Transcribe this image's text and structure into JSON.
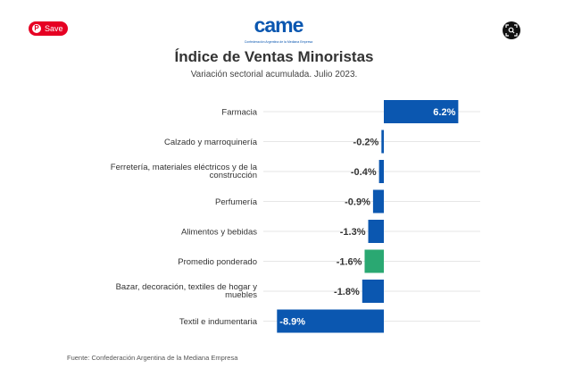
{
  "overlay": {
    "save_label": "Save",
    "pin_glyph": "P"
  },
  "logo": {
    "text": "came",
    "subtitle": "Confederación Argentina de la Mediana Empresa"
  },
  "header": {
    "title": "Índice de Ventas Minoristas",
    "subtitle": "Variación sectorial acumulada. Julio 2023."
  },
  "footer": {
    "source": "Fuente: Confederación Argentina de la Mediana Empresa"
  },
  "colors": {
    "bar": "#0b57b0",
    "highlight": "#2aa872",
    "gridline": "#e6e6e6",
    "label_dark": "#333333",
    "label_light": "#ffffff"
  },
  "chart_data": {
    "type": "bar",
    "orientation": "horizontal",
    "title": "Índice de Ventas Minoristas",
    "subtitle": "Variación sectorial acumulada. Julio 2023.",
    "xlabel": "",
    "ylabel": "",
    "unit": "%",
    "xlim": [
      -8.9,
      6.2
    ],
    "grid": true,
    "categories": [
      "Farmacia",
      "Calzado y marroquinería",
      "Ferretería, materiales eléctricos y de la construcción",
      "Perfumería",
      "Alimentos y bebidas",
      "Promedio ponderado",
      "Bazar, decoración, textiles de hogar y muebles",
      "Textil e indumentaria"
    ],
    "values": [
      6.2,
      -0.2,
      -0.4,
      -0.9,
      -1.3,
      -1.6,
      -1.8,
      -8.9
    ],
    "value_labels": [
      "6.2%",
      "-0.2%",
      "-0.4%",
      "-0.9%",
      "-1.3%",
      "-1.6%",
      "-1.8%",
      "-8.9%"
    ],
    "highlighted": [
      "Promedio ponderado"
    ],
    "source": "Fuente: Confederación Argentina de la Mediana Empresa"
  }
}
